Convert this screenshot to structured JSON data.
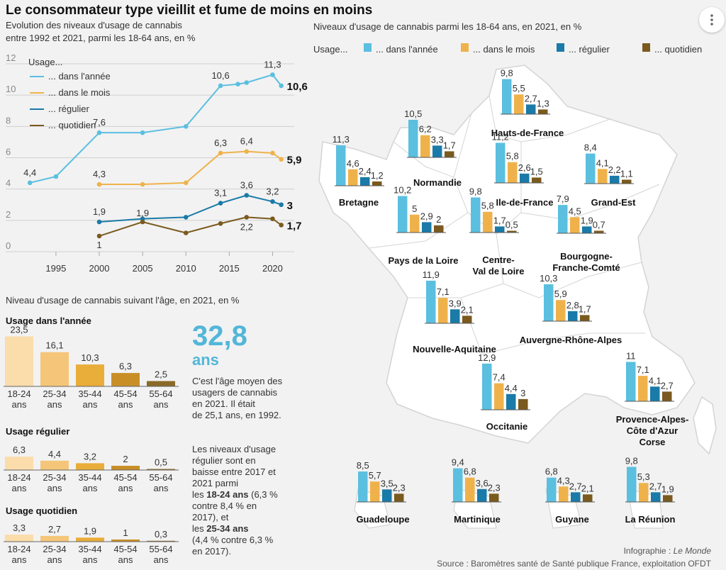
{
  "title": "Le consommateur type vieillit et fume de moins en moins",
  "colors": {
    "year": "#5bbfe0",
    "month": "#efb24b",
    "regular": "#1a7aa8",
    "daily": "#7a5a1e",
    "map_land": "#ffffff",
    "map_border": "#d4d4d4",
    "age_bar_1": "#fbdcab",
    "age_bar_2": "#f5c679",
    "age_bar_3": "#e9ad3a",
    "age_bar_4": "#c98f27",
    "age_bar_5": "#8a6a28",
    "highlight": "#52b6d9"
  },
  "line_panel": {
    "subtitle_line1": "Evolution des niveaux d'usage de cannabis",
    "subtitle_line2": "entre 1992 et 2021, parmi les 18-64 ans, en %",
    "legend_title": "Usage...",
    "legend": [
      "... dans l'année",
      "... dans le mois",
      "... régulier",
      "... quotidien"
    ]
  },
  "chart_data": [
    {
      "type": "line",
      "x_ticks": [
        1995,
        2000,
        2005,
        2010,
        2015,
        2020
      ],
      "y_ticks": [
        0,
        2,
        4,
        6,
        8,
        10,
        12
      ],
      "xlim": [
        1991,
        2022.5
      ],
      "ylim": [
        0,
        12
      ],
      "grid": true,
      "series": [
        {
          "name": "... dans l'année",
          "color_key": "year",
          "x": [
            1992,
            1995,
            2000,
            2005,
            2010,
            2014,
            2016,
            2017,
            2020,
            2021
          ],
          "y": [
            4.4,
            4.8,
            7.6,
            7.6,
            8.0,
            10.6,
            10.7,
            10.8,
            11.3,
            10.6
          ],
          "labels": {
            "0": "4,4",
            "2": "7,6",
            "5": "10,6",
            "8": "11,3"
          },
          "end_label": "10,6"
        },
        {
          "name": "... dans le mois",
          "color_key": "month",
          "x": [
            2000,
            2005,
            2010,
            2014,
            2017,
            2020,
            2021
          ],
          "y": [
            4.3,
            4.3,
            4.4,
            6.3,
            6.4,
            6.3,
            5.9
          ],
          "labels": {
            "0": "4,3",
            "3": "6,3",
            "4": "6,4"
          },
          "end_label": "5,9"
        },
        {
          "name": "... régulier",
          "color_key": "regular",
          "x": [
            2000,
            2005,
            2010,
            2014,
            2017,
            2020,
            2021
          ],
          "y": [
            1.9,
            2.1,
            2.2,
            3.1,
            3.6,
            3.2,
            3.0
          ],
          "labels": {
            "0": "1,9",
            "3": "3,1",
            "4": "3,6",
            "5": "3,2"
          },
          "end_label": "3"
        },
        {
          "name": "... quotidien",
          "color_key": "daily",
          "x": [
            2000,
            2005,
            2010,
            2014,
            2017,
            2020,
            2021
          ],
          "y": [
            1.0,
            1.9,
            1.2,
            1.8,
            2.2,
            2.1,
            1.7
          ],
          "labels": {
            "0": "1",
            "1": "1,9",
            "4": "2,2"
          },
          "end_label": "1,7"
        }
      ]
    },
    {
      "type": "bar",
      "title": "Niveau d'usage de cannabis suivant l'âge, en 2021, en %",
      "categories": [
        "18-24 ans",
        "25-34 ans",
        "35-44 ans",
        "45-54 ans",
        "55-64 ans"
      ],
      "groups": [
        {
          "name": "Usage dans l'année",
          "values": [
            23.5,
            16.1,
            10.3,
            6.3,
            2.5
          ],
          "labels": [
            "23,5",
            "16,1",
            "10,3",
            "6,3",
            "2,5"
          ]
        },
        {
          "name": "Usage régulier",
          "values": [
            6.3,
            4.4,
            3.2,
            2.0,
            0.5
          ],
          "labels": [
            "6,3",
            "4,4",
            "3,2",
            "2",
            "0,5"
          ]
        },
        {
          "name": "Usage quotidien",
          "values": [
            3.3,
            2.7,
            1.9,
            1.0,
            0.3
          ],
          "labels": [
            "3,3",
            "2,7",
            "1,9",
            "1",
            "0,3"
          ]
        }
      ]
    },
    {
      "type": "bar",
      "title": "Niveaux d'usage de cannabis parmi les 18-64 ans, en 2021, en %",
      "legend_title": "Usage...",
      "series_names": [
        "... dans l'année",
        "... dans le mois",
        "... régulier",
        "... quotidien"
      ],
      "regions": [
        {
          "name": [
            "Hauts-de-France"
          ],
          "values": [
            9.8,
            5.5,
            2.7,
            1.3
          ],
          "labels": [
            "9,8",
            "5,5",
            "2,7",
            "1,3"
          ]
        },
        {
          "name": [
            "Normandie"
          ],
          "values": [
            10.5,
            6.2,
            3.3,
            1.7
          ],
          "labels": [
            "10,5",
            "6,2",
            "3,3",
            "1,7"
          ]
        },
        {
          "name": [
            "Bretagne"
          ],
          "values": [
            11.3,
            4.6,
            2.4,
            1.2
          ],
          "labels": [
            "11,3",
            "4,6",
            "2,4",
            "1,2"
          ]
        },
        {
          "name": [
            "Ile-de-France"
          ],
          "values": [
            11.2,
            5.8,
            2.6,
            1.5
          ],
          "labels": [
            "11,2",
            "5,8",
            "2,6",
            "1,5"
          ]
        },
        {
          "name": [
            "Grand-Est"
          ],
          "values": [
            8.4,
            4.1,
            2.2,
            1.1
          ],
          "labels": [
            "8,4",
            "4,1",
            "2,2",
            "1,1"
          ]
        },
        {
          "name": [
            "Pays de la Loire"
          ],
          "values": [
            10.2,
            5.0,
            2.9,
            2.0
          ],
          "labels": [
            "10,2",
            "5",
            "2,9",
            "2"
          ]
        },
        {
          "name": [
            "Centre-",
            "Val de Loire"
          ],
          "values": [
            9.8,
            5.8,
            1.7,
            0.5
          ],
          "labels": [
            "9,8",
            "5,8",
            "1,7",
            "0,5"
          ]
        },
        {
          "name": [
            "Bourgogne-",
            "Franche-Comté"
          ],
          "values": [
            7.9,
            4.5,
            1.9,
            0.7
          ],
          "labels": [
            "7,9",
            "4,5",
            "1,9",
            "0,7"
          ]
        },
        {
          "name": [
            "Nouvelle-Aquitaine"
          ],
          "values": [
            11.9,
            7.1,
            3.9,
            2.1
          ],
          "labels": [
            "11,9",
            "7,1",
            "3,9",
            "2,1"
          ]
        },
        {
          "name": [
            "Auvergne-Rhône-Alpes"
          ],
          "values": [
            10.3,
            5.9,
            2.8,
            1.7
          ],
          "labels": [
            "10,3",
            "5,9",
            "2,8",
            "1,7"
          ]
        },
        {
          "name": [
            "Occitanie"
          ],
          "values": [
            12.9,
            7.4,
            4.4,
            3.0
          ],
          "labels": [
            "12,9",
            "7,4",
            "4,4",
            "3"
          ]
        },
        {
          "name": [
            "Provence-Alpes-",
            "Côte d'Azur",
            "Corse"
          ],
          "values": [
            11.0,
            7.1,
            4.1,
            2.7
          ],
          "labels": [
            "11",
            "7,1",
            "4,1",
            "2,7"
          ]
        },
        {
          "name": [
            "Guadeloupe"
          ],
          "values": [
            8.5,
            5.7,
            3.5,
            2.3
          ],
          "labels": [
            "8,5",
            "5,7",
            "3,5",
            "2,3"
          ]
        },
        {
          "name": [
            "Martinique"
          ],
          "values": [
            9.4,
            6.8,
            3.6,
            2.3
          ],
          "labels": [
            "9,4",
            "6,8",
            "3,6",
            "2,3"
          ]
        },
        {
          "name": [
            "Guyane"
          ],
          "values": [
            6.8,
            4.3,
            2.7,
            2.1
          ],
          "labels": [
            "6,8",
            "4,3",
            "2,7",
            "2,1"
          ]
        },
        {
          "name": [
            "La Réunion"
          ],
          "values": [
            9.8,
            5.3,
            2.7,
            1.9
          ],
          "labels": [
            "9,8",
            "5,3",
            "2,7",
            "1,9"
          ]
        }
      ]
    }
  ],
  "age_panel": {
    "big_number": "32,8",
    "big_unit": "ans",
    "text1": [
      "C'est l'âge moyen des",
      "usagers de cannabis",
      "en 2021. Il était",
      "de 25,1 ans, en 1992."
    ],
    "text2": [
      [
        {
          "t": "Les niveaux d'usage",
          "b": false
        }
      ],
      [
        {
          "t": "régulier sont en",
          "b": false
        }
      ],
      [
        {
          "t": "baisse entre 2017 et",
          "b": false
        }
      ],
      [
        {
          "t": "2021 parmi",
          "b": false
        }
      ],
      [
        {
          "t": "les ",
          "b": false
        },
        {
          "t": "18-24 ans",
          "b": true
        },
        {
          "t": " (6,3 %",
          "b": false
        }
      ],
      [
        {
          "t": "contre 8,4 % en",
          "b": false
        }
      ],
      [
        {
          "t": "2017), et",
          "b": false
        }
      ],
      [
        {
          "t": "les ",
          "b": false
        },
        {
          "t": "25-34 ans",
          "b": true
        }
      ],
      [
        {
          "t": "(4,4 % contre 6,3 %",
          "b": false
        }
      ],
      [
        {
          "t": "en 2017).",
          "b": false
        }
      ]
    ]
  },
  "credits": {
    "infographie_prefix": "Infographie : ",
    "infographie_name": "Le Monde",
    "source": "Source : Baromètres santé de Santé publique France, exploitation OFDT"
  }
}
